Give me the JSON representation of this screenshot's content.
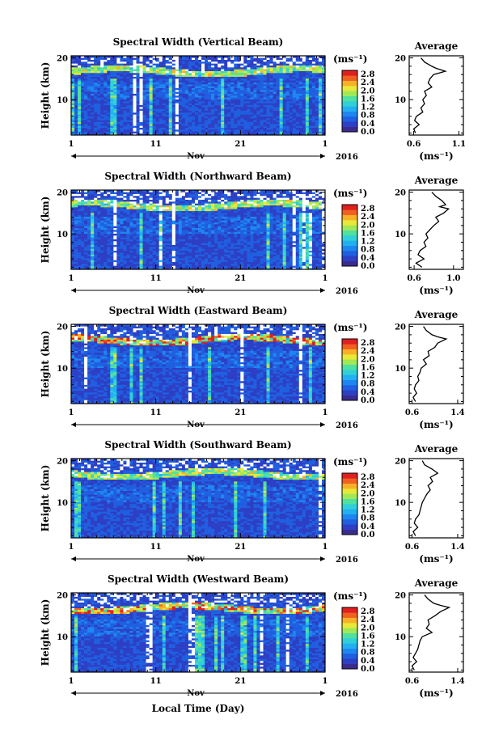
{
  "chart_data": {
    "type": "heatmap",
    "panels": [
      {
        "title": "Spectral Width (Vertical Beam)",
        "average_title": "Average",
        "avg_xticks": [
          "0.6",
          "1.1"
        ],
        "avg_xlim": [
          0.55,
          1.15
        ],
        "avg_profile": [
          [
            2,
            0.62
          ],
          [
            3,
            0.6
          ],
          [
            4,
            0.66
          ],
          [
            5,
            0.61
          ],
          [
            6,
            0.63
          ],
          [
            7,
            0.7
          ],
          [
            8,
            0.68
          ],
          [
            9,
            0.72
          ],
          [
            10,
            0.7
          ],
          [
            11,
            0.74
          ],
          [
            12,
            0.72
          ],
          [
            13,
            0.8
          ],
          [
            14,
            0.76
          ],
          [
            15,
            0.78
          ],
          [
            16,
            0.82
          ],
          [
            16.8,
            0.95
          ],
          [
            17.5,
            0.85
          ],
          [
            18,
            0.8
          ],
          [
            19,
            0.72
          ],
          [
            20,
            0.68
          ]
        ]
      },
      {
        "title": "Spectral Width (Northward Beam)",
        "average_title": "Average",
        "avg_xticks": [
          "0.6",
          "1.0"
        ],
        "avg_xlim": [
          0.55,
          1.1
        ],
        "avg_profile": [
          [
            2,
            0.68
          ],
          [
            3,
            0.62
          ],
          [
            4,
            0.7
          ],
          [
            5,
            0.64
          ],
          [
            6,
            0.66
          ],
          [
            7,
            0.72
          ],
          [
            8,
            0.7
          ],
          [
            9,
            0.74
          ],
          [
            10,
            0.72
          ],
          [
            11,
            0.76
          ],
          [
            12,
            0.8
          ],
          [
            13,
            0.85
          ],
          [
            14,
            0.82
          ],
          [
            15,
            0.9
          ],
          [
            16,
            0.95
          ],
          [
            16.5,
            0.86
          ],
          [
            17,
            0.92
          ],
          [
            18,
            0.88
          ],
          [
            19,
            0.82
          ],
          [
            20,
            0.78
          ]
        ]
      },
      {
        "title": "Spectral Width (Eastward Beam)",
        "average_title": "Average",
        "avg_xticks": [
          "0.6",
          "1.4"
        ],
        "avg_xlim": [
          0.55,
          1.5
        ],
        "avg_profile": [
          [
            2,
            0.66
          ],
          [
            3,
            0.62
          ],
          [
            4,
            0.68
          ],
          [
            5,
            0.64
          ],
          [
            6,
            0.66
          ],
          [
            7,
            0.72
          ],
          [
            8,
            0.7
          ],
          [
            9,
            0.74
          ],
          [
            10,
            0.76
          ],
          [
            11,
            0.85
          ],
          [
            12,
            0.8
          ],
          [
            13,
            0.9
          ],
          [
            14,
            0.88
          ],
          [
            15,
            1.0
          ],
          [
            16,
            1.05
          ],
          [
            17,
            1.2
          ],
          [
            17.5,
            1.05
          ],
          [
            18,
            0.95
          ],
          [
            19,
            0.85
          ],
          [
            20,
            0.8
          ]
        ]
      },
      {
        "title": "Spectral Width (Southward Beam)",
        "average_title": "Average",
        "avg_xticks": [
          "0.6",
          "1.4"
        ],
        "avg_xlim": [
          0.55,
          1.5
        ],
        "avg_profile": [
          [
            2,
            0.66
          ],
          [
            3,
            0.62
          ],
          [
            4,
            0.7
          ],
          [
            5,
            0.64
          ],
          [
            6,
            0.66
          ],
          [
            7,
            0.72
          ],
          [
            8,
            0.74
          ],
          [
            9,
            0.76
          ],
          [
            10,
            0.78
          ],
          [
            11,
            0.82
          ],
          [
            12,
            0.86
          ],
          [
            13,
            0.92
          ],
          [
            14,
            0.88
          ],
          [
            15,
            0.96
          ],
          [
            16,
            0.92
          ],
          [
            17,
            1.05
          ],
          [
            18,
            0.95
          ],
          [
            19,
            0.82
          ],
          [
            20,
            0.78
          ]
        ]
      },
      {
        "title": "Spectral Width (Westward Beam)",
        "average_title": "Average",
        "avg_xticks": [
          "0.6",
          "1.4"
        ],
        "avg_xlim": [
          0.55,
          1.5
        ],
        "avg_profile": [
          [
            2,
            0.64
          ],
          [
            3,
            0.6
          ],
          [
            4,
            0.68
          ],
          [
            5,
            0.62
          ],
          [
            6,
            0.66
          ],
          [
            7,
            0.7
          ],
          [
            8,
            0.72
          ],
          [
            9,
            0.74
          ],
          [
            10,
            0.78
          ],
          [
            11,
            0.95
          ],
          [
            12,
            0.85
          ],
          [
            13,
            0.9
          ],
          [
            14,
            0.88
          ],
          [
            15,
            1.0
          ],
          [
            16,
            1.1
          ],
          [
            17,
            1.25
          ],
          [
            17.5,
            1.1
          ],
          [
            18,
            0.98
          ],
          [
            19,
            0.88
          ],
          [
            20,
            0.82
          ]
        ]
      }
    ],
    "x_tick_labels": [
      "1",
      "11",
      "21",
      "1"
    ],
    "x_month_label": "Nov",
    "year_label": "2016",
    "xlabel": "Local Time (Day)",
    "ylabel": "Height (km)",
    "ytick_labels": [
      "10",
      "20"
    ],
    "ylim": [
      1.5,
      20.5
    ],
    "colorbar": {
      "unit_label": "(ms⁻¹)",
      "tick_labels": [
        "0.0",
        "0.4",
        "0.8",
        "1.2",
        "1.6",
        "2.0",
        "2.4",
        "2.8"
      ],
      "range": [
        0.0,
        3.0
      ],
      "colors": [
        "#3b2b8f",
        "#2d3fc4",
        "#1f5fe0",
        "#1e86f0",
        "#22b0f0",
        "#30d0d8",
        "#50e0a0",
        "#a0e858",
        "#e8e838",
        "#f8b028",
        "#f06020",
        "#e02020"
      ]
    },
    "avg_xlabel": "(ms⁻¹)"
  }
}
